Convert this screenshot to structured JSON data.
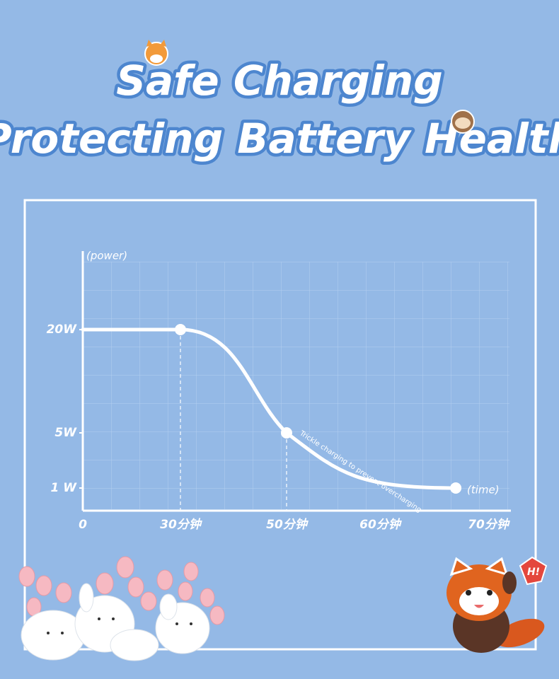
{
  "chart_data": {
    "type": "line",
    "title": "Safe Charging",
    "subtitle": "Protecting Battery Health",
    "y_label": "(power)",
    "x_label": "(time)",
    "annotation": "Trickle charging to prevent overcharging",
    "badge": "H!",
    "color": "#ffffff",
    "x": [
      0,
      30,
      50,
      67
    ],
    "values": [
      20,
      20,
      5,
      1
    ],
    "xlim": [
      0,
      75
    ],
    "xticks": [
      0,
      {
        "value": 30,
        "label": "30分钟"
      },
      {
        "value": 50,
        "label": "50分钟"
      },
      {
        "value": 60,
        "label": "60分钟"
      },
      {
        "value": 70,
        "label": "70分钟"
      }
    ],
    "ylim": [
      0,
      30
    ],
    "yticks": [
      {
        "value": 1,
        "label": "1 W"
      },
      {
        "value": 5,
        "label": "5W"
      },
      {
        "value": 20,
        "label": "20W"
      }
    ]
  }
}
